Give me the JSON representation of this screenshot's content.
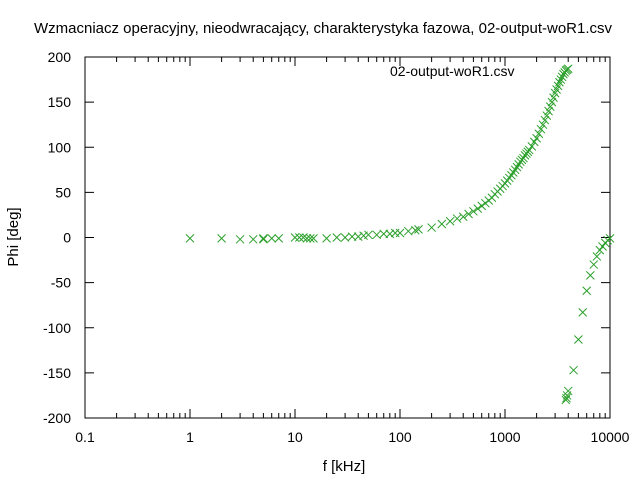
{
  "chart_data": {
    "type": "scatter",
    "title": "Wzmacniacz operacyjny, nieodwracający, charakterystyka fazowa, 02-output-woR1.csv",
    "xlabel": "f [kHz]",
    "ylabel": "Phi [deg]",
    "x_scale": "log",
    "xlim": [
      0.1,
      10000
    ],
    "ylim": [
      -200,
      200
    ],
    "x_ticks": [
      0.1,
      1,
      10,
      100,
      1000,
      10000
    ],
    "x_tick_labels": [
      "0.1",
      "1",
      "10",
      "100",
      "1000",
      "10000"
    ],
    "y_ticks": [
      -200,
      -150,
      -100,
      -50,
      0,
      50,
      100,
      150,
      200
    ],
    "y_tick_labels": [
      "-200",
      "-150",
      "-100",
      "-50",
      "0",
      "50",
      "100",
      "150",
      "200"
    ],
    "grid": false,
    "legend_position": "top-right",
    "marker": "x",
    "colors": {
      "series": "#2ca02c",
      "axis": "#000000"
    },
    "series": [
      {
        "name": "02-output-woR1.csv",
        "x": [
          1,
          2,
          3,
          4,
          5,
          5,
          6,
          7,
          10,
          11,
          12,
          13,
          14,
          15,
          20,
          25,
          30,
          35,
          40,
          45,
          50,
          60,
          70,
          80,
          90,
          100,
          120,
          140,
          150,
          200,
          250,
          300,
          350,
          400,
          450,
          500,
          550,
          600,
          650,
          700,
          750,
          800,
          850,
          900,
          950,
          1000,
          1050,
          1100,
          1150,
          1200,
          1250,
          1300,
          1350,
          1400,
          1450,
          1500,
          1550,
          1600,
          1650,
          1700,
          1800,
          1900,
          2000,
          2100,
          2200,
          2300,
          2400,
          2500,
          2600,
          2700,
          2800,
          2900,
          3000,
          3100,
          3200,
          3300,
          3400,
          3500,
          3600,
          3700,
          3800,
          3900,
          4000,
          3800,
          3850,
          3900,
          4000,
          4500,
          5000,
          5500,
          6000,
          6500,
          7000,
          7500,
          8000,
          8500,
          9000,
          9500,
          10000
        ],
        "y": [
          -1,
          -1,
          -2,
          -2,
          -2,
          -1,
          -1,
          -1,
          0,
          0,
          0,
          -1,
          -1,
          -1,
          -1,
          0,
          0,
          1,
          1,
          2,
          3,
          3,
          4,
          4,
          5,
          5,
          7,
          8,
          9,
          11,
          15,
          18,
          21,
          23,
          26,
          29,
          32,
          35,
          38,
          41,
          44,
          48,
          51,
          54,
          57,
          60,
          63,
          66,
          69,
          72,
          75,
          78,
          81,
          84,
          86,
          88,
          91,
          93,
          95,
          97,
          101,
          106,
          110,
          115,
          120,
          125,
          130,
          135,
          140,
          145,
          150,
          155,
          160,
          164,
          168,
          172,
          175,
          178,
          181,
          183,
          185,
          186,
          187,
          -180,
          -178,
          -175,
          -170,
          -147,
          -113,
          -83,
          -59,
          -42,
          -30,
          -21,
          -14,
          -10,
          -6,
          -3,
          -1
        ]
      }
    ]
  }
}
